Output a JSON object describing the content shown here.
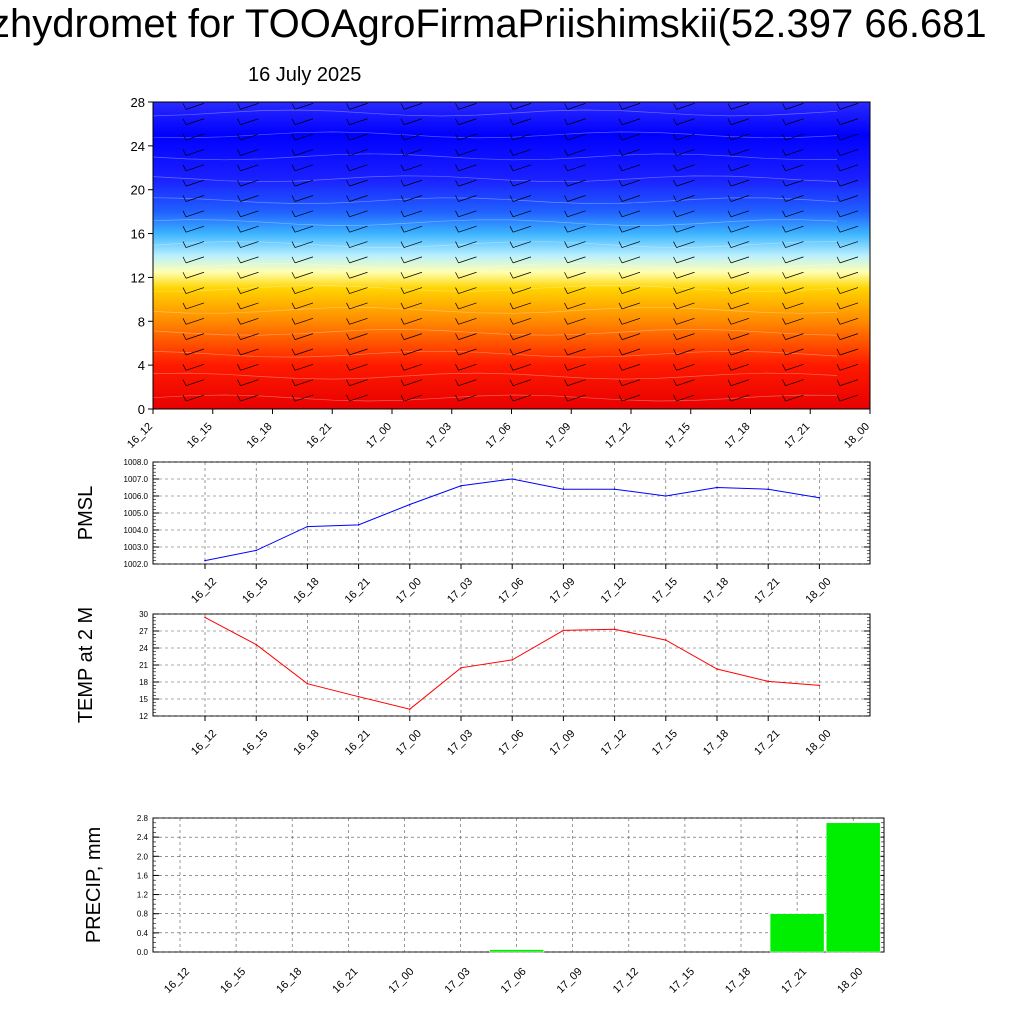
{
  "title": "zhydromet for TOOAgroFirmaPriishimskii(52.397 66.681",
  "subtitle": "16 July 2025",
  "time_labels": [
    "16_12",
    "16_15",
    "16_18",
    "16_21",
    "17_00",
    "17_03",
    "17_06",
    "17_09",
    "17_12",
    "17_15",
    "17_18",
    "17_21",
    "18_00"
  ],
  "chart_data": [
    {
      "type": "heatmap",
      "name": "vertical-profile",
      "ylim": [
        0,
        28
      ],
      "yticks": [
        0,
        4,
        8,
        12,
        16,
        20,
        24,
        28
      ],
      "x_tick_labels": [
        "16_12",
        "16_15",
        "16_18",
        "16_21",
        "17_00",
        "17_03",
        "17_06",
        "17_09",
        "17_12",
        "17_15",
        "17_18",
        "17_21",
        "18_00"
      ],
      "color_stops": [
        {
          "level": 0,
          "color": "#e80000"
        },
        {
          "level": 4,
          "color": "#ff1a00"
        },
        {
          "level": 8,
          "color": "#ff8a00"
        },
        {
          "level": 11,
          "color": "#ffd400"
        },
        {
          "level": 12.5,
          "color": "#ffffb0"
        },
        {
          "level": 14,
          "color": "#b8f0ff"
        },
        {
          "level": 16,
          "color": "#3cb4ff"
        },
        {
          "level": 18,
          "color": "#2060ff"
        },
        {
          "level": 21,
          "color": "#1a20ff"
        },
        {
          "level": 25,
          "color": "#0000ff"
        },
        {
          "level": 28,
          "color": "#2a2aff"
        }
      ],
      "wind_barbs": true
    },
    {
      "type": "line",
      "ylabel": "PMSL",
      "ylim": [
        1002.0,
        1008.0
      ],
      "yticks": [
        "1002.0",
        "1003.0",
        "1004.0",
        "1005.0",
        "1006.0",
        "1007.0",
        "1008.0"
      ],
      "categories": [
        "16_12",
        "16_15",
        "16_18",
        "16_21",
        "17_00",
        "17_03",
        "17_06",
        "17_09",
        "17_12",
        "17_15",
        "17_18",
        "17_21",
        "18_00"
      ],
      "values": [
        1002.2,
        1002.8,
        1004.2,
        1004.3,
        1005.5,
        1006.6,
        1007.0,
        1006.4,
        1006.4,
        1006.0,
        1006.5,
        1006.4,
        1005.9
      ],
      "color": "#0000ff"
    },
    {
      "type": "line",
      "ylabel": "TEMP at 2 M",
      "ylim": [
        12,
        30
      ],
      "yticks": [
        "12",
        "15",
        "18",
        "21",
        "24",
        "27",
        "30"
      ],
      "categories": [
        "16_12",
        "16_15",
        "16_18",
        "16_21",
        "17_00",
        "17_03",
        "17_06",
        "17_09",
        "17_12",
        "17_15",
        "17_18",
        "17_21",
        "18_00"
      ],
      "values": [
        29.4,
        24.6,
        17.7,
        15.4,
        13.2,
        20.5,
        21.9,
        27.1,
        27.3,
        25.4,
        20.3,
        18.1,
        17.4
      ],
      "color": "#ff0000"
    },
    {
      "type": "bar",
      "ylabel": "PRECIP, mm",
      "ylim": [
        0,
        2.8
      ],
      "yticks": [
        "0.0",
        "0.4",
        "0.8",
        "1.2",
        "1.6",
        "2.0",
        "2.4",
        "2.8"
      ],
      "categories": [
        "16_12",
        "16_15",
        "16_18",
        "16_21",
        "17_00",
        "17_03",
        "17_06",
        "17_09",
        "17_12",
        "17_15",
        "17_18",
        "17_21",
        "18_00"
      ],
      "values": [
        0,
        0,
        0,
        0,
        0,
        0,
        0.05,
        0,
        0,
        0,
        0,
        0.8,
        2.7
      ],
      "color": "#00ee00"
    }
  ]
}
